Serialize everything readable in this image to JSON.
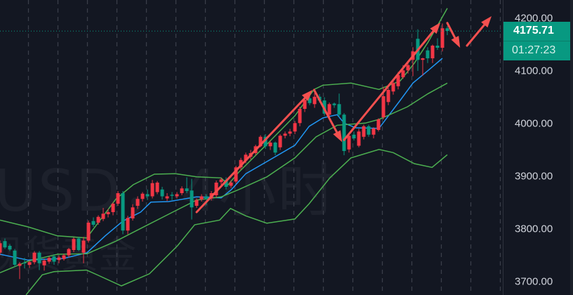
{
  "watermark": {
    "line1": "USD，4小时",
    "line2": "现货黄金"
  },
  "chart_data": {
    "type": "candlestick",
    "price_axis": {
      "ticks": [
        "4200.00",
        "4100.00",
        "4000.00",
        "3900.00",
        "3800.00",
        "3700.00"
      ],
      "tick_values": [
        4200,
        4100,
        4000,
        3900,
        3800,
        3700
      ],
      "range": [
        3676,
        4234
      ]
    },
    "current_price": "4175.71",
    "current_price_value": 4175.71,
    "countdown": "01:27:23",
    "grid": "vertical dashed",
    "colors": {
      "up": "#f23645",
      "down": "#089981",
      "ma": "#2196f3",
      "bands": "#4caf50",
      "arrows": "#f5504f",
      "background": "#131722",
      "price_label": "#089981"
    },
    "candles": [
      [
        3755,
        3778,
        3750,
        3773
      ],
      [
        3777,
        3782,
        3762,
        3765
      ],
      [
        3768,
        3771,
        3758,
        3761
      ],
      [
        3759,
        3762,
        3728,
        3732
      ],
      [
        3730,
        3737,
        3705,
        3734
      ],
      [
        3736,
        3745,
        3725,
        3735
      ],
      [
        3732,
        3740,
        3726,
        3737
      ],
      [
        3737,
        3758,
        3733,
        3755
      ],
      [
        3755,
        3758,
        3722,
        3735
      ],
      [
        3731,
        3744,
        3721,
        3740
      ],
      [
        3738,
        3748,
        3734,
        3745
      ],
      [
        3748,
        3752,
        3732,
        3738
      ],
      [
        3741,
        3750,
        3735,
        3746
      ],
      [
        3743,
        3753,
        3740,
        3750
      ],
      [
        3750,
        3764,
        3746,
        3762
      ],
      [
        3760,
        3784,
        3756,
        3781
      ],
      [
        3782,
        3785,
        3758,
        3760
      ],
      [
        3755,
        3785,
        3735,
        3778
      ],
      [
        3778,
        3816,
        3774,
        3812
      ],
      [
        3815,
        3822,
        3804,
        3808
      ],
      [
        3812,
        3826,
        3808,
        3823
      ],
      [
        3819,
        3840,
        3815,
        3829
      ],
      [
        3828,
        3838,
        3822,
        3832
      ],
      [
        3832,
        3851,
        3826,
        3848
      ],
      [
        3848,
        3872,
        3844,
        3868
      ],
      [
        3868,
        3872,
        3790,
        3797
      ],
      [
        3797,
        3825,
        3790,
        3821
      ],
      [
        3820,
        3847,
        3816,
        3841
      ],
      [
        3844,
        3862,
        3838,
        3857
      ],
      [
        3857,
        3870,
        3852,
        3867
      ],
      [
        3866,
        3875,
        3855,
        3862
      ],
      [
        3862,
        3893,
        3858,
        3887
      ],
      [
        3870,
        3891,
        3866,
        3888
      ],
      [
        3875,
        3880,
        3856,
        3862
      ],
      [
        3858,
        3868,
        3853,
        3862
      ],
      [
        3865,
        3870,
        3855,
        3863
      ],
      [
        3862,
        3870,
        3858,
        3866
      ],
      [
        3868,
        3881,
        3864,
        3877
      ],
      [
        3877,
        3898,
        3868,
        3872
      ],
      [
        3873,
        3895,
        3818,
        3841
      ],
      [
        3844,
        3858,
        3840,
        3855
      ],
      [
        3856,
        3866,
        3852,
        3862
      ],
      [
        3862,
        3866,
        3845,
        3857
      ],
      [
        3858,
        3872,
        3854,
        3868
      ],
      [
        3864,
        3892,
        3860,
        3888
      ],
      [
        3889,
        3897,
        3884,
        3894
      ],
      [
        3893,
        3898,
        3875,
        3880
      ],
      [
        3882,
        3892,
        3878,
        3888
      ],
      [
        3890,
        3920,
        3886,
        3917
      ],
      [
        3917,
        3935,
        3912,
        3931
      ],
      [
        3930,
        3945,
        3925,
        3941
      ],
      [
        3937,
        3950,
        3932,
        3944
      ],
      [
        3944,
        3960,
        3940,
        3957
      ],
      [
        3957,
        3978,
        3955,
        3975
      ],
      [
        3975,
        3980,
        3952,
        3957
      ],
      [
        3957,
        3968,
        3950,
        3964
      ],
      [
        3964,
        3966,
        3940,
        3945
      ],
      [
        3955,
        3980,
        3950,
        3977
      ],
      [
        3977,
        3985,
        3972,
        3981
      ],
      [
        3981,
        3990,
        3976,
        3985
      ],
      [
        3985,
        4005,
        3980,
        4001
      ],
      [
        4001,
        4032,
        3995,
        4028
      ],
      [
        4028,
        4048,
        4022,
        4045
      ],
      [
        4048,
        4055,
        4035,
        4039
      ],
      [
        4037,
        4058,
        4030,
        4051
      ],
      [
        4051,
        4056,
        4040,
        4044
      ],
      [
        4044,
        4050,
        4015,
        4019
      ],
      [
        4017,
        4040,
        4012,
        4037
      ],
      [
        4038,
        4040,
        4030,
        4035
      ],
      [
        4037,
        4057,
        4012,
        4017
      ],
      [
        4017,
        4020,
        3940,
        3948
      ],
      [
        3951,
        3980,
        3945,
        3977
      ],
      [
        3979,
        3985,
        3968,
        3972
      ],
      [
        3958,
        3990,
        3955,
        3985
      ],
      [
        3975,
        3998,
        3970,
        3995
      ],
      [
        3995,
        3998,
        3975,
        3979
      ],
      [
        3979,
        3993,
        3972,
        3991
      ],
      [
        3988,
        4010,
        3985,
        4008
      ],
      [
        4012,
        4070,
        4008,
        4052
      ],
      [
        4041,
        4068,
        4035,
        4064
      ],
      [
        4061,
        4082,
        4055,
        4077
      ],
      [
        4071,
        4098,
        4065,
        4092
      ],
      [
        4088,
        4111,
        4085,
        4101
      ],
      [
        4101,
        4116,
        4095,
        4111
      ],
      [
        4121,
        4145,
        4090,
        4137
      ],
      [
        4161,
        4179,
        4100,
        4121
      ],
      [
        4121,
        4125,
        4091,
        4124
      ],
      [
        4139,
        4145,
        4115,
        4124
      ],
      [
        4124,
        4150,
        4115,
        4148
      ],
      [
        4148,
        4162,
        4140,
        4144
      ],
      [
        4144,
        4190,
        4137,
        4181
      ],
      [
        4181,
        4185,
        4168,
        4176
      ]
    ],
    "lines": {
      "upper_band": [
        [
          0,
          3817
        ],
        [
          5.7,
          3804
        ],
        [
          11.7,
          3787
        ],
        [
          17.7,
          3783
        ],
        [
          18.6,
          3795
        ],
        [
          23.6,
          3857
        ],
        [
          27.1,
          3884
        ],
        [
          31.4,
          3904
        ],
        [
          35.7,
          3905
        ],
        [
          40,
          3899
        ],
        [
          45,
          3897
        ],
        [
          46.4,
          3884
        ],
        [
          48.6,
          3908
        ],
        [
          54.3,
          3961
        ],
        [
          60,
          4015
        ],
        [
          63.9,
          4065
        ],
        [
          65.7,
          4073
        ],
        [
          71.4,
          4077
        ],
        [
          77.1,
          4065
        ],
        [
          81.4,
          4081
        ],
        [
          84.3,
          4115
        ],
        [
          87.1,
          4155
        ],
        [
          91,
          4219
        ]
      ],
      "moving_average": [
        [
          0,
          3752
        ],
        [
          5.7,
          3741
        ],
        [
          12.9,
          3744
        ],
        [
          17.7,
          3755
        ],
        [
          21.4,
          3787
        ],
        [
          25,
          3815
        ],
        [
          28.6,
          3832
        ],
        [
          30.7,
          3851
        ],
        [
          34.3,
          3852
        ],
        [
          40,
          3861
        ],
        [
          45,
          3859
        ],
        [
          47.1,
          3875
        ],
        [
          50,
          3905
        ],
        [
          54.3,
          3928
        ],
        [
          60,
          3959
        ],
        [
          62.9,
          3995
        ],
        [
          65.7,
          4011
        ],
        [
          68.6,
          4017
        ],
        [
          70,
          4001
        ],
        [
          72.4,
          3992
        ],
        [
          77.1,
          3991
        ],
        [
          77.9,
          4001
        ],
        [
          81.4,
          4044
        ],
        [
          84,
          4077
        ],
        [
          87.1,
          4101
        ],
        [
          90,
          4124
        ]
      ],
      "middle_band": [
        [
          0,
          3717
        ],
        [
          5.7,
          3739
        ],
        [
          11.7,
          3752
        ],
        [
          17.7,
          3753
        ],
        [
          23.6,
          3777
        ],
        [
          28.6,
          3801
        ],
        [
          34.3,
          3828
        ],
        [
          40,
          3855
        ],
        [
          45,
          3861
        ],
        [
          48.6,
          3875
        ],
        [
          54.3,
          3899
        ],
        [
          60,
          3935
        ],
        [
          64.3,
          3975
        ],
        [
          68.6,
          3997
        ],
        [
          74.3,
          4001
        ],
        [
          77.1,
          4008
        ],
        [
          82.9,
          4032
        ],
        [
          87.1,
          4057
        ],
        [
          91,
          4077
        ]
      ],
      "lower_band": [
        [
          5.3,
          3675
        ],
        [
          8.6,
          3713
        ],
        [
          11,
          3719
        ],
        [
          17.6,
          3722
        ],
        [
          20,
          3712
        ],
        [
          24.7,
          3692
        ],
        [
          30.4,
          3715
        ],
        [
          36.1,
          3768
        ],
        [
          39.6,
          3808
        ],
        [
          44.7,
          3817
        ],
        [
          46.9,
          3839
        ],
        [
          50,
          3825
        ],
        [
          54.3,
          3811
        ],
        [
          60,
          3819
        ],
        [
          62.9,
          3848
        ],
        [
          67.1,
          3897
        ],
        [
          71.4,
          3935
        ],
        [
          77.1,
          3951
        ],
        [
          80,
          3945
        ],
        [
          84.3,
          3924
        ],
        [
          87.9,
          3917
        ],
        [
          91,
          3941
        ]
      ]
    },
    "annotations": [
      {
        "type": "arrow",
        "from": [
          40,
          3832
        ],
        "to": [
          63.6,
          4064
        ]
      },
      {
        "type": "arrow",
        "from": [
          63.9,
          4064
        ],
        "to": [
          69.6,
          3965
        ]
      },
      {
        "type": "arrow",
        "from": [
          70,
          3969
        ],
        "to": [
          89.6,
          4192
        ]
      },
      {
        "type": "arrow",
        "from": [
          91,
          4191
        ],
        "to": [
          93.6,
          4144
        ]
      },
      {
        "type": "arrow",
        "from": [
          95,
          4148
        ],
        "to": [
          100,
          4204
        ]
      }
    ]
  }
}
